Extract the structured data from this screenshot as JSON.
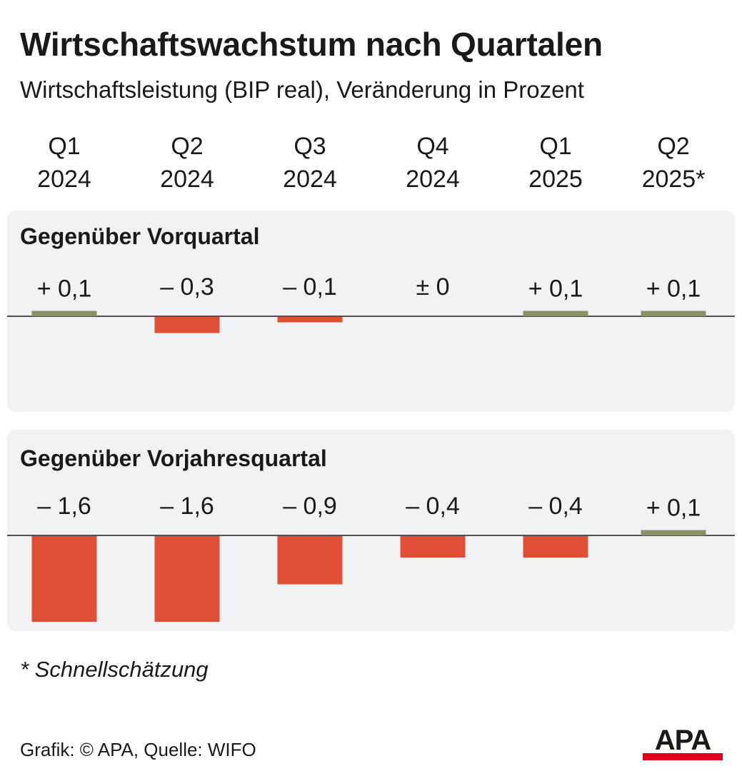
{
  "title": "Wirtschaftswachstum nach Quartalen",
  "subtitle": "Wirtschaftsleistung (BIP real), Veränderung in Prozent",
  "footnote": "* Schnellschätzung",
  "source": "Grafik: © APA, Quelle: WIFO",
  "logo_text": "APA",
  "colors": {
    "positive": "#8a9068",
    "negative": "#e04e36",
    "panel_bg": "#f1f2f3",
    "logo_red": "#e2001a"
  },
  "quarters": [
    {
      "q": "Q1",
      "year": "2024"
    },
    {
      "q": "Q2",
      "year": "2024"
    },
    {
      "q": "Q3",
      "year": "2024"
    },
    {
      "q": "Q4",
      "year": "2024"
    },
    {
      "q": "Q1",
      "year": "2025"
    },
    {
      "q": "Q2",
      "year": "2025*"
    }
  ],
  "chart_data": [
    {
      "type": "bar",
      "title": "Gegenüber Vorquartal",
      "categories": [
        "Q1 2024",
        "Q2 2024",
        "Q3 2024",
        "Q4 2024",
        "Q1 2025",
        "Q2 2025*"
      ],
      "values": [
        0.1,
        -0.3,
        -0.1,
        0,
        0.1,
        0.1
      ],
      "labels": [
        "+ 0,1",
        "– 0,3",
        "– 0,1",
        "± 0",
        "+ 0,1",
        "+ 0,1"
      ],
      "ylim": [
        -1.6,
        0.1
      ]
    },
    {
      "type": "bar",
      "title": "Gegenüber Vorjahresquartal",
      "categories": [
        "Q1 2024",
        "Q2 2024",
        "Q3 2024",
        "Q4 2024",
        "Q1 2025",
        "Q2 2025*"
      ],
      "values": [
        -1.6,
        -1.6,
        -0.9,
        -0.4,
        -0.4,
        0.1
      ],
      "labels": [
        "– 1,6",
        "– 1,6",
        "– 0,9",
        "– 0,4",
        "– 0,4",
        "+ 0,1"
      ],
      "ylim": [
        -1.6,
        0.1
      ]
    }
  ]
}
